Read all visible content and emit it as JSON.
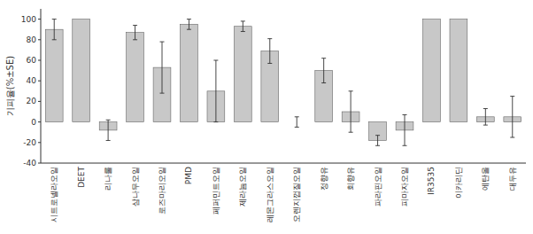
{
  "chart_data": {
    "type": "bar",
    "categories": [
      "시트로넬라오일",
      "DEET",
      "리나룰",
      "삼나무오일",
      "로즈마리오일",
      "PMD",
      "페퍼민트오일",
      "제라늄오일",
      "레몬그라스오일",
      "오렌지껍질오일",
      "정향유",
      "회향유",
      "파라핀오일",
      "피마자오일",
      "IR3535",
      "이카리딘",
      "에탄올",
      "대두유"
    ],
    "values": [
      90,
      100,
      -8,
      87,
      53,
      95,
      30,
      93,
      69,
      0,
      50,
      10,
      -18,
      -8,
      100,
      100,
      5,
      5
    ],
    "errors": [
      10,
      0,
      10,
      7,
      25,
      5,
      30,
      5,
      12,
      5,
      12,
      20,
      5,
      15,
      0,
      0,
      8,
      20
    ],
    "color": "#c8c8c8",
    "ylabel": "기피율(%±SE)",
    "ylim": [
      -40,
      110
    ],
    "yticks": [
      -40,
      -20,
      0,
      20,
      40,
      60,
      80,
      100
    ],
    "grid": false
  }
}
